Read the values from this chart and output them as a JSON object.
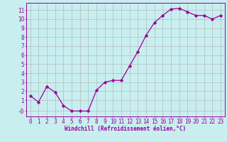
{
  "x": [
    0,
    1,
    2,
    3,
    4,
    5,
    6,
    7,
    8,
    9,
    10,
    11,
    12,
    13,
    14,
    15,
    16,
    17,
    18,
    19,
    20,
    21,
    22,
    23
  ],
  "y": [
    1.5,
    0.8,
    2.5,
    1.9,
    0.4,
    -0.2,
    -0.2,
    -0.2,
    2.1,
    3.0,
    3.2,
    3.2,
    4.8,
    6.4,
    8.2,
    9.6,
    10.4,
    11.1,
    11.2,
    10.8,
    10.4,
    10.4,
    10.0,
    10.4
  ],
  "line_color": "#990099",
  "marker": "D",
  "marker_size": 2.2,
  "bg_color": "#c8eef0",
  "grid_color": "#b0b0b0",
  "xlabel": "Windchill (Refroidissement éolien,°C)",
  "ytick_labels": [
    "11",
    "10",
    "9",
    "8",
    "7",
    "6",
    "5",
    "4",
    "3",
    "2",
    "1",
    "-0"
  ],
  "ytick_vals": [
    11,
    10,
    9,
    8,
    7,
    6,
    5,
    4,
    3,
    2,
    1,
    -0.2
  ],
  "ylim": [
    -0.8,
    11.8
  ],
  "xlim": [
    -0.5,
    23.5
  ],
  "xticks": [
    0,
    1,
    2,
    3,
    4,
    5,
    6,
    7,
    8,
    9,
    10,
    11,
    12,
    13,
    14,
    15,
    16,
    17,
    18,
    19,
    20,
    21,
    22,
    23
  ],
  "label_fontsize": 5.5,
  "tick_fontsize": 5.5
}
